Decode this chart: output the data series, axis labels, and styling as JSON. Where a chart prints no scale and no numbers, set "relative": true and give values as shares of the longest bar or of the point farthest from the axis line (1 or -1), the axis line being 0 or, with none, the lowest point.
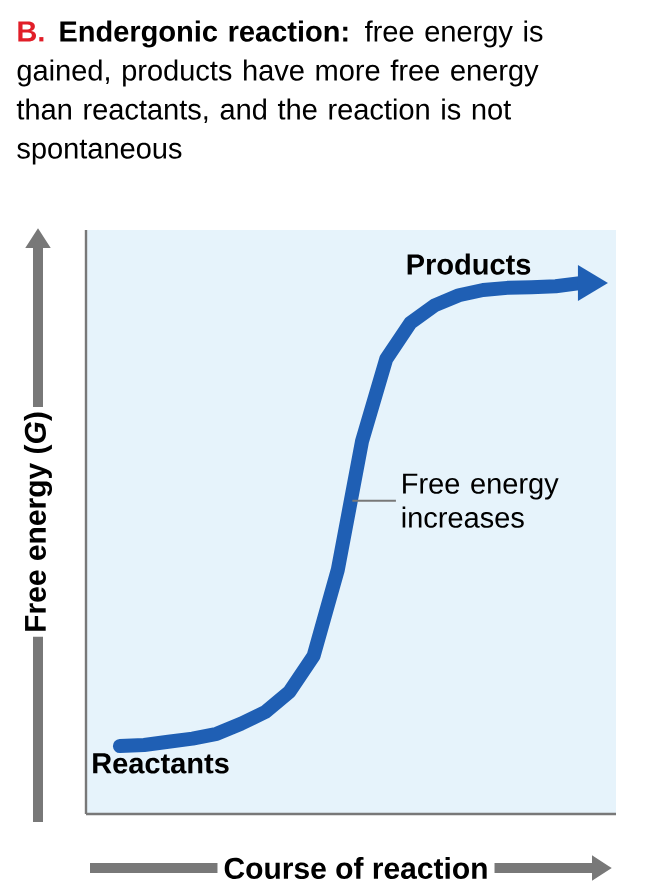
{
  "chart_data": {
    "type": "line",
    "relative": true,
    "title": "**Endergonic reaction:** free energy is gained, products have more free energy than reactants, and the reaction is not spontaneous",
    "xlabel": "Course of reaction",
    "ylabel": "Free energy (*G*)",
    "annotations": [
      "B.",
      "Reactants",
      "Products",
      "Free energy increases"
    ],
    "categories": [
      null,
      null,
      null,
      null,
      null,
      null,
      null,
      null,
      null,
      null,
      null,
      null,
      null,
      null,
      null,
      null,
      null,
      null,
      null,
      null
    ],
    "marker": "none",
    "line_style": "solid",
    "series": [
      {
        "color": "#1f5fb4",
        "values": [
          0.128,
          0.13,
          0.136,
          0.142,
          0.151,
          0.17,
          0.192,
          0.23,
          0.298,
          0.46,
          0.702,
          0.857,
          0.925,
          0.958,
          0.977,
          0.987,
          0.991,
          0.992,
          0.994,
          1
        ]
      }
    ]
  }
}
